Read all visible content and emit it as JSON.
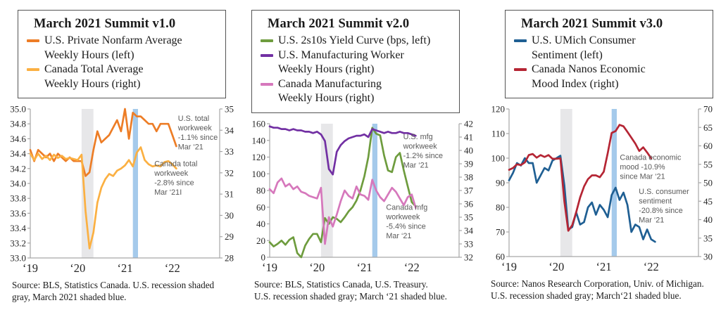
{
  "chart_data": [
    {
      "type": "line",
      "title": "March 2021 Summit v1.0",
      "x": {
        "axis_max_month": 48,
        "tick_months": [
          0,
          12,
          24,
          36
        ],
        "tick_labels": [
          "‘19",
          "‘20",
          "‘21",
          "‘22"
        ]
      },
      "left_axis": {
        "min": 33,
        "max": 35,
        "ticks": [
          [
            "35.0",
            35
          ],
          [
            "34.8",
            34.8
          ],
          [
            "34.6",
            34.6
          ],
          [
            "34.4",
            34.4
          ],
          [
            "34.2",
            34.2
          ],
          [
            "34.0",
            34
          ],
          [
            "33.8",
            33.8
          ],
          [
            "33.6",
            33.6
          ],
          [
            "33.4",
            33.4
          ],
          [
            "33.2",
            33.2
          ],
          [
            "33.0",
            33
          ]
        ]
      },
      "right_axis": {
        "min": 28,
        "max": 35,
        "ticks": [
          [
            "35",
            35
          ],
          [
            "34",
            34
          ],
          [
            "33",
            33
          ],
          [
            "32",
            32
          ],
          [
            "31",
            31
          ],
          [
            "30",
            30
          ],
          [
            "29",
            29
          ],
          [
            "28",
            28
          ]
        ]
      },
      "bands": [
        {
          "key": "us-recession",
          "color": "#E7E7E9",
          "from_month": 13,
          "to_month": 16
        },
        {
          "key": "march-2021",
          "color": "#A5CAEB",
          "from_month": 26,
          "to_month": 27.3
        }
      ],
      "series": [
        {
          "key": "us-private-nonfarm-hours",
          "axis": "left",
          "color": "#ED7D26",
          "legend_lines": "U.S. Private Nonfarm Average\nWeekly Hours (left)",
          "values": [
            34.45,
            34.3,
            34.45,
            34.4,
            34.35,
            34.4,
            34.3,
            34.4,
            34.35,
            34.3,
            34.35,
            34.3,
            34.3,
            34.3,
            34.1,
            34.15,
            34.45,
            34.7,
            34.55,
            34.6,
            34.65,
            34.75,
            34.85,
            34.7,
            35,
            34.6,
            34.95,
            34.9,
            34.9,
            34.85,
            34.8,
            34.8,
            34.7,
            34.8,
            34.8,
            34.8,
            34.65,
            34.5
          ]
        },
        {
          "key": "canada-total-hours",
          "axis": "right",
          "color": "#FBB042",
          "legend_lines": "Canada Total Average\nWeekly Hours (right)",
          "values": [
            32.9,
            32.6,
            32.9,
            32.65,
            32.8,
            32.6,
            32.85,
            32.7,
            32.8,
            32.65,
            32.7,
            32.65,
            32.6,
            32.85,
            30.2,
            28.45,
            29.2,
            30.6,
            31.3,
            31.7,
            31.95,
            31.85,
            32.1,
            32.2,
            32.35,
            32.6,
            32.3,
            32.95,
            33.2,
            32.6,
            32.4,
            32.3,
            32.35,
            32.3,
            32.5,
            32.55,
            32.4,
            32.2
          ]
        }
      ],
      "annotations": [
        {
          "lines": [
            "U.S. total",
            "workweek",
            "-1.1% since",
            "Mar ‘21"
          ],
          "fx": 0.78,
          "fy": 0.08
        },
        {
          "lines": [
            "Canada total",
            "workweek",
            "-2.8% since",
            "Mar ‘21I"
          ],
          "fx": 0.655,
          "fy": 0.385
        }
      ],
      "source_lines": [
        "Source: BLS, Statistics Canada. U.S. recession shaded",
        "gray, March 2021 shaded blue."
      ]
    },
    {
      "type": "line",
      "title": "March 2021 Summit v2.0",
      "x": {
        "axis_max_month": 48,
        "tick_months": [
          0,
          12,
          24,
          36
        ],
        "tick_labels": [
          "‘19",
          "‘20",
          "‘21",
          "‘22"
        ]
      },
      "left_axis": {
        "min": 0,
        "max": 160,
        "ticks": [
          [
            "160",
            160
          ],
          [
            "140",
            140
          ],
          [
            "120",
            120
          ],
          [
            "100",
            100
          ],
          [
            "80",
            80
          ],
          [
            "60",
            60
          ],
          [
            "40",
            40
          ],
          [
            "20",
            20
          ],
          [
            "0",
            0
          ]
        ]
      },
      "right_axis": {
        "min": 32,
        "max": 42,
        "ticks": [
          [
            "42",
            42
          ],
          [
            "41",
            41
          ],
          [
            "40",
            40
          ],
          [
            "39",
            39
          ],
          [
            "38",
            38
          ],
          [
            "37",
            37
          ],
          [
            "36",
            36
          ],
          [
            "35",
            35
          ],
          [
            "34",
            34
          ],
          [
            "33",
            33
          ],
          [
            "32",
            32
          ]
        ]
      },
      "bands": [
        {
          "key": "us-recession",
          "color": "#E7E7E9",
          "from_month": 13,
          "to_month": 16
        },
        {
          "key": "march-2021",
          "color": "#A5CAEB",
          "from_month": 26,
          "to_month": 27.3
        }
      ],
      "series": [
        {
          "key": "us-2s10s-yield-curve",
          "axis": "left",
          "color": "#6E9C3E",
          "legend_lines": "U.S. 2s10s Yield Curve (bps, left)",
          "values": [
            18,
            13,
            16,
            20,
            15,
            21,
            24,
            5,
            0,
            14,
            22,
            28,
            28,
            18,
            47,
            40,
            48,
            46,
            42,
            48,
            55,
            60,
            68,
            80,
            97,
            120,
            155,
            148,
            146,
            122,
            104,
            102,
            120,
            125,
            104,
            85,
            66,
            61
          ]
        },
        {
          "key": "us-manufacturing-hours",
          "axis": "right",
          "color": "#7230A3",
          "legend_lines": "U.S. Manufacturing Worker\nWeekly Hours (right)",
          "values": [
            41.8,
            41.7,
            41.7,
            41.6,
            41.6,
            41.5,
            41.6,
            41.5,
            41.5,
            41.4,
            41.4,
            41.3,
            41.4,
            41.2,
            40.7,
            38.6,
            38.2,
            39.9,
            40.4,
            40.7,
            40.9,
            41,
            41.1,
            41.1,
            41.2,
            41,
            41.6,
            41.5,
            41.4,
            41.3,
            41.4,
            41.3,
            41.3,
            41.4,
            41.3,
            41.3,
            41.2,
            41.1
          ]
        },
        {
          "key": "canada-manufacturing-hours",
          "axis": "right",
          "color": "#D678BC",
          "legend_lines": "Canada Manufacturing\nWeekly Hours (right)",
          "values": [
            37.1,
            36.8,
            37.6,
            37.9,
            37.3,
            37.5,
            37.1,
            37.3,
            36.9,
            36.8,
            36.6,
            36.5,
            36.4,
            37.2,
            33,
            35,
            34.3,
            35.2,
            36.2,
            37,
            36.6,
            36.4,
            37.3,
            36.7,
            36.6,
            36.3,
            37.8,
            37,
            36.5,
            36.2,
            36.7,
            37.2,
            36.9,
            36.4,
            35.9,
            36.5,
            36.7,
            35.7
          ]
        }
      ],
      "annotations": [
        {
          "lines": [
            "U.S. mfg",
            "workweek",
            "-1.2% since",
            "Mar ‘21"
          ],
          "fx": 0.705,
          "fy": 0.115
        },
        {
          "lines": [
            "Canada mfg",
            "workweek",
            "-5.4% since",
            "Mar ‘21"
          ],
          "fx": 0.615,
          "fy": 0.645
        }
      ],
      "source_lines": [
        "Source: BLS, Statistics Canada, U.S. Treasury.",
        "U.S. recession shaded gray; March ‘21 shaded blue."
      ]
    },
    {
      "type": "line",
      "title": "March 2021 Summit v3.0",
      "x": {
        "axis_max_month": 48,
        "tick_months": [
          0,
          12,
          24,
          36
        ],
        "tick_labels": [
          "‘19",
          "‘20",
          "‘21",
          "‘22"
        ]
      },
      "left_axis": {
        "min": 60,
        "max": 120,
        "ticks": [
          [
            "120",
            120
          ],
          [
            "110",
            110
          ],
          [
            "100",
            100
          ],
          [
            "90",
            90
          ],
          [
            "80",
            80
          ],
          [
            "70",
            70
          ],
          [
            "60",
            60
          ]
        ]
      },
      "right_axis": {
        "min": 30,
        "max": 70,
        "ticks": [
          [
            "70",
            70
          ],
          [
            "65",
            65
          ],
          [
            "60",
            60
          ],
          [
            "55",
            55
          ],
          [
            "50",
            50
          ],
          [
            "45",
            45
          ],
          [
            "40",
            40
          ],
          [
            "35",
            35
          ],
          [
            "30",
            30
          ]
        ]
      },
      "bands": [
        {
          "key": "us-recession",
          "color": "#E7E7E9",
          "from_month": 13,
          "to_month": 16
        },
        {
          "key": "march-2021",
          "color": "#A5CAEB",
          "from_month": 26,
          "to_month": 27.3
        }
      ],
      "series": [
        {
          "key": "us-umich-consumer-sentiment",
          "axis": "left",
          "color": "#1F5F93",
          "legend_lines": "U.S. UMich Consumer\nSentiment (left)",
          "values": [
            91,
            94,
            98,
            97,
            100,
            98,
            98,
            90,
            93,
            96,
            95,
            99,
            100,
            101,
            89,
            71,
            72,
            78,
            73,
            74,
            80,
            82,
            77,
            81,
            79,
            76,
            85,
            88,
            83,
            86,
            81,
            70,
            73,
            72,
            67,
            71,
            67,
            66
          ]
        },
        {
          "key": "canada-nanos-economic-mood",
          "axis": "right",
          "color": "#B52534",
          "legend_lines": "Canada Nanos Economic\nMood Index (right)",
          "values": [
            53.5,
            54,
            55,
            54.8,
            55.5,
            57.5,
            57.8,
            56.8,
            57.5,
            57,
            57.5,
            56.5,
            56.5,
            56.6,
            45,
            37,
            38.5,
            42,
            46,
            49,
            51,
            52,
            52,
            51.5,
            53,
            58,
            63.5,
            64,
            65.7,
            65.3,
            63.8,
            62.2,
            60.6,
            58.6,
            59.6,
            58.2,
            56.6
          ]
        }
      ],
      "annotations": [
        {
          "lines": [
            "Canada economic",
            "mood -10.9%",
            "since Mar ‘21"
          ],
          "fx": 0.585,
          "fy": 0.345
        },
        {
          "lines": [
            "U.S. consumer",
            "sentiment",
            "-20.8% since",
            "Mar ‘21"
          ],
          "fx": 0.685,
          "fy": 0.575
        }
      ],
      "source_lines": [
        "Source: Nanos Research Corporation, Univ. of Michigan.",
        "U.S. recession shaded gray; March‘21 shaded blue."
      ]
    }
  ]
}
